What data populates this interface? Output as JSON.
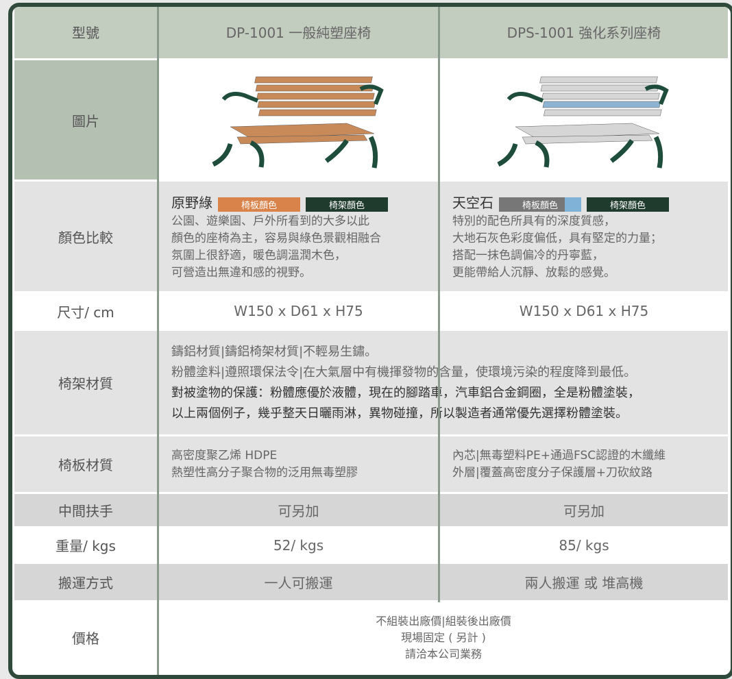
{
  "table": {
    "header": [
      "型號",
      "DP-1001 一般純塑座椅",
      "DPS-1001 強化系列座椅"
    ],
    "image_row": {
      "label": "圖片"
    },
    "color_row": {
      "label": "顏色比較",
      "products": [
        {
          "name": "原野綠",
          "board_swatch": "椅板顏色",
          "frame_swatch": "椅架顏色",
          "description": [
            "公園、遊樂園、戶外所看到的大多以此",
            "顏色的座椅為主，容易與綠色景觀相融合",
            "氛圍上很舒適，暖色調溫潤木色，",
            "可營造出無違和感的視野。"
          ]
        },
        {
          "name": "天空石",
          "board_swatch": "椅板顏色",
          "frame_swatch": "椅架顏色",
          "description": [
            "特別的配色所具有的深度質感，",
            "大地石灰色彩度偏低，具有堅定的力量；",
            "搭配一抹色調偏冷的丹寧藍，",
            "更能帶給人沉靜、放鬆的感覺。"
          ]
        }
      ]
    },
    "size_row": [
      "尺寸/ cm",
      "W150 x D61 x H75",
      "W150 x D61 x H75"
    ],
    "frame_row": {
      "label": "椅架材質",
      "lines": [
        "鑄鋁材質|鑄鋁椅架材質|不輕易生鏽。",
        "粉體塗料|遵照環保法令|在大氣層中有機揮發物的含量，使環境污染的程度降到最低。",
        "對被塗物的保護：粉體應優於液體，現在的腳踏車，汽車鋁合金鋼圈，全是粉體塗裝，",
        "以上兩個例子，幾乎整天日曬雨淋，異物碰撞，所以製造者通常優先選擇粉體塗裝。"
      ]
    },
    "board_row": {
      "label": "椅板材質",
      "cells": [
        [
          "高密度聚乙烯 HDPE",
          "熱塑性高分子聚合物的泛用無毒塑膠"
        ],
        [
          "內芯|無毒塑料PE+通過FSC認證的木纖維",
          "外層|覆蓋高密度分子保護層+刀砍紋路"
        ]
      ]
    },
    "armrest_row": [
      "中間扶手",
      "可另加",
      "可另加"
    ],
    "weight_row": [
      "重量/ kgs",
      "52/ kgs",
      "85/ kgs"
    ],
    "transport_row": [
      "搬運方式",
      "一人可搬運",
      "兩人搬運 或 堆高機"
    ],
    "price_row": {
      "label": "價格",
      "lines": [
        "不組裝出廠價|組裝後出廠價",
        "現場固定 ( 另計 )",
        "請洽本公司業務"
      ]
    }
  }
}
